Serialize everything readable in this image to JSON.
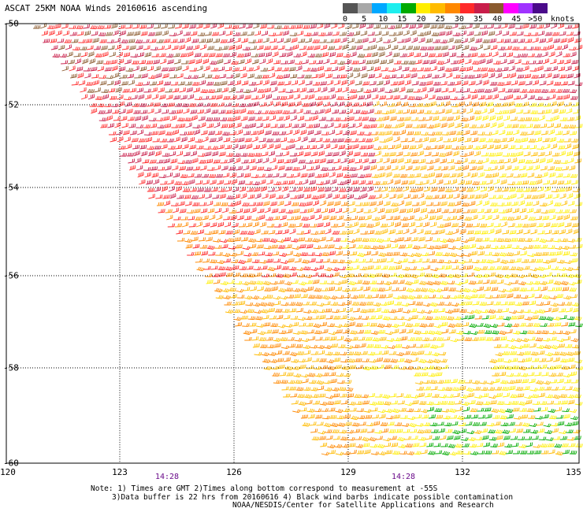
{
  "title": "ASCAT 25KM NOAA Winds 20160616 ascending",
  "colorbar": {
    "colors": [
      "#555555",
      "#a8a8a8",
      "#00a8ff",
      "#1eeeee",
      "#00aa00",
      "#ffee00",
      "#ffbb00",
      "#ff8800",
      "#ff2a2a",
      "#c81e4a",
      "#8a5a2e",
      "#ff00ff",
      "#a033ff",
      "#4a0a8a"
    ],
    "labels": [
      "0",
      "5",
      "10",
      "15",
      "20",
      "25",
      "30",
      "35",
      "40",
      "45",
      ">50"
    ],
    "units": "knots"
  },
  "axes": {
    "lat_labels": [
      "-50",
      "-52",
      "-54",
      "-56",
      "-58",
      "-60"
    ],
    "lon_labels": [
      "120",
      "123",
      "126",
      "129",
      "132",
      "135"
    ]
  },
  "time_labels": [
    "14:28",
    "14:28"
  ],
  "notes": {
    "line1": "Note: 1) Times are GMT 2)Times along bottom correspond to measurement at -55S",
    "line2": "3)Data buffer is 22 hrs from 20160616 4) Black wind barbs indicate possible contamination",
    "line3": "NOAA/NESDIS/Center for Satellite Applications and Research"
  }
}
